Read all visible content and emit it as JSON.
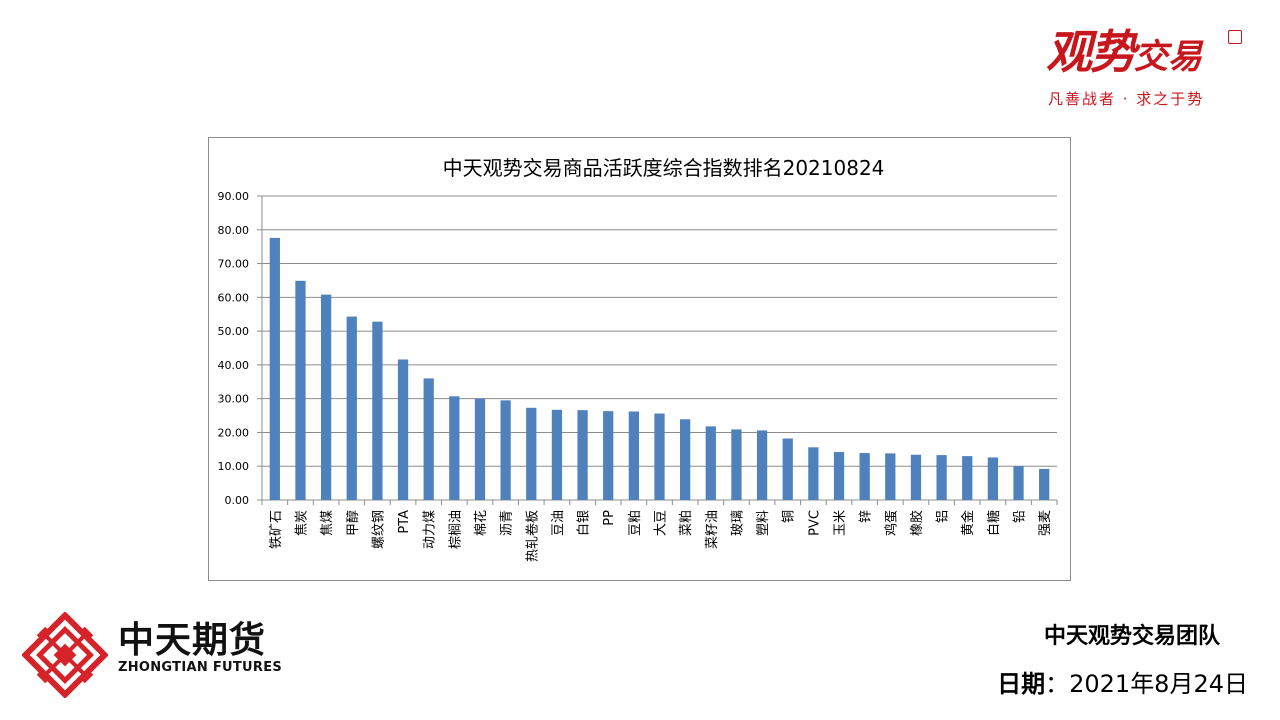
{
  "brand": {
    "logo_text_big": "观势",
    "logo_text_small": "交易",
    "tagline": "凡善战者 · 求之于势",
    "color": "#c8161d"
  },
  "company": {
    "name": "中天期货",
    "name_en": "ZHONGTIAN FUTURES",
    "color": "#d6232a"
  },
  "footer": {
    "team": "中天观势交易团队",
    "date_label": "日期",
    "date_sep": "：",
    "date_value": "2021年8月24日"
  },
  "chart_data": {
    "type": "bar",
    "title": "中天观势交易商品活跃度综合指数排名20210824",
    "xlabel": "",
    "ylabel": "",
    "ylim": [
      0,
      90
    ],
    "yticks": [
      "0.00",
      "10.00",
      "20.00",
      "30.00",
      "40.00",
      "50.00",
      "60.00",
      "70.00",
      "80.00",
      "90.00"
    ],
    "grid": true,
    "bar_color": "#4f81bd",
    "categories": [
      "铁矿石",
      "焦炭",
      "焦煤",
      "甲醇",
      "螺纹钢",
      "PTA",
      "动力煤",
      "棕榈油",
      "棉花",
      "沥青",
      "热轧卷板",
      "豆油",
      "白银",
      "PP",
      "豆粕",
      "大豆",
      "菜粕",
      "菜籽油",
      "玻璃",
      "塑料",
      "铜",
      "PVC",
      "玉米",
      "锌",
      "鸡蛋",
      "橡胶",
      "铝",
      "黄金",
      "白糖",
      "铅",
      "强麦"
    ],
    "values": [
      77.6,
      64.9,
      60.8,
      54.3,
      52.8,
      41.6,
      36.0,
      30.7,
      30.0,
      29.5,
      27.3,
      26.7,
      26.6,
      26.3,
      26.2,
      25.6,
      23.9,
      21.8,
      20.9,
      20.6,
      18.2,
      15.6,
      14.2,
      13.9,
      13.8,
      13.4,
      13.3,
      13.0,
      12.6,
      10.0,
      9.2
    ]
  }
}
